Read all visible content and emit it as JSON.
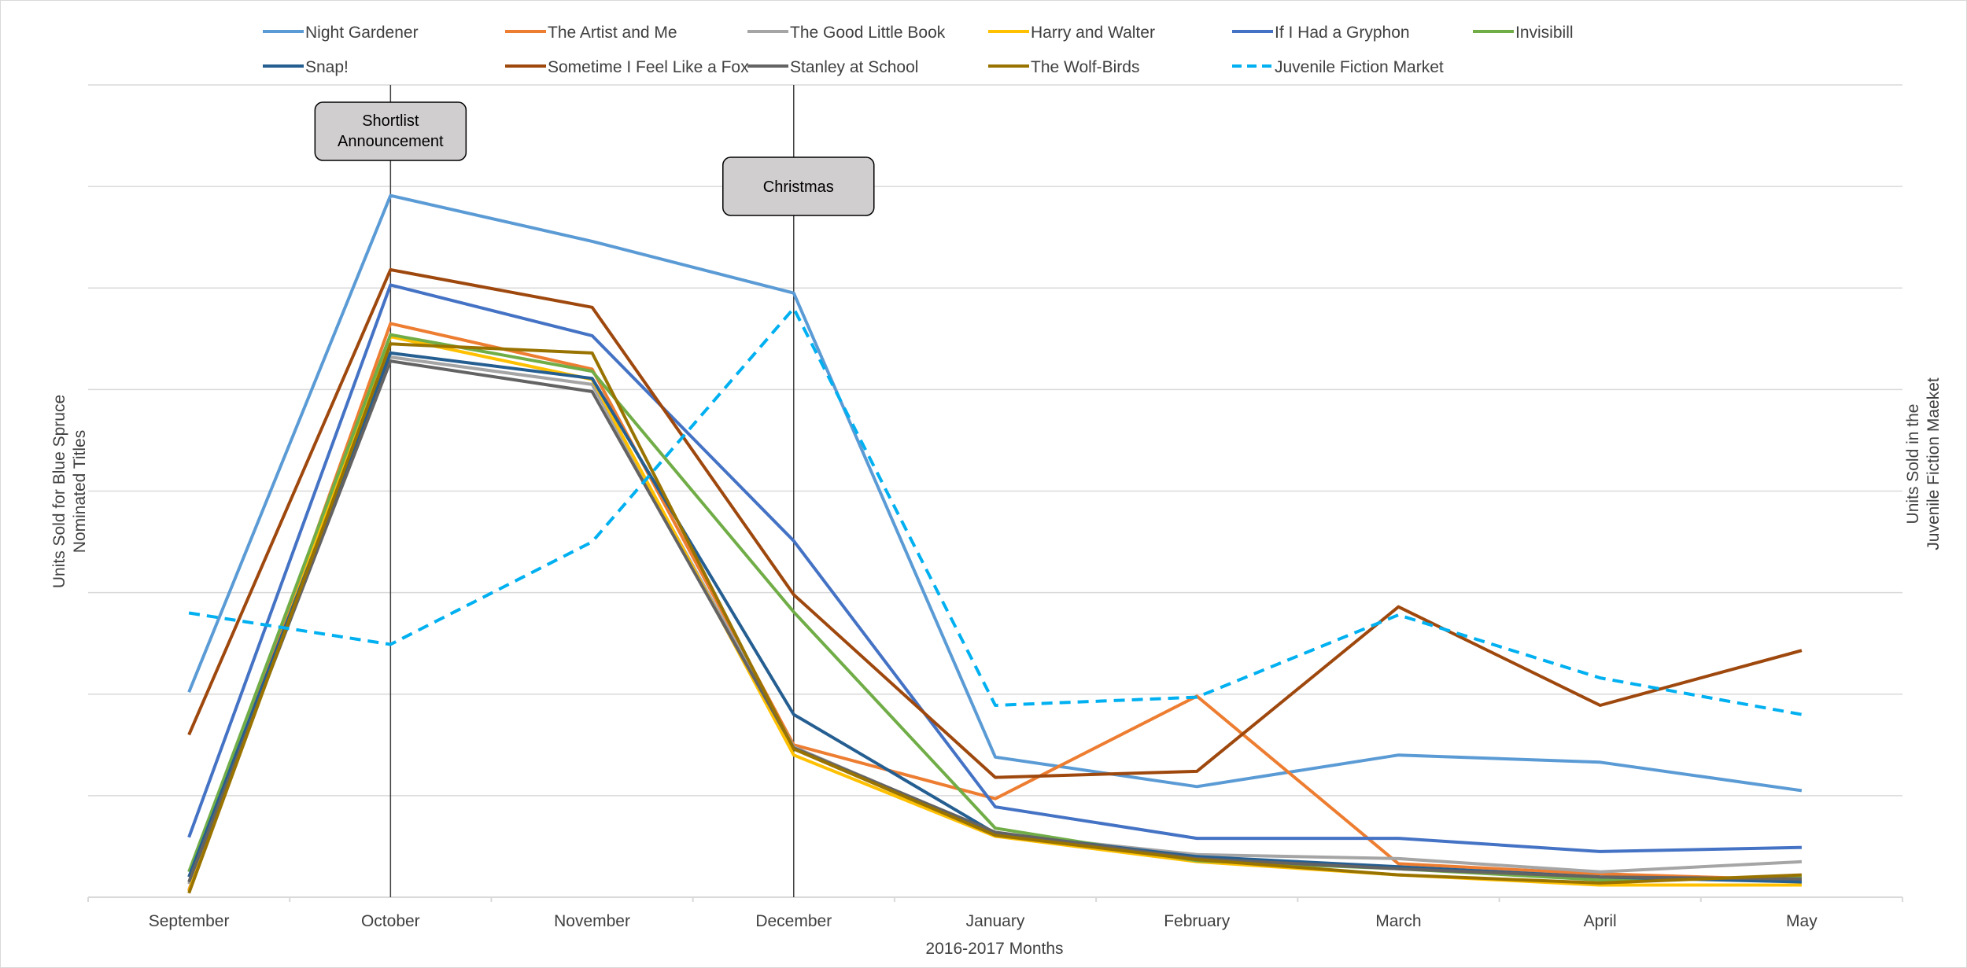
{
  "chart_data": {
    "type": "line",
    "xlabel": "2016-2017  Months",
    "ylabel": "Units Sold for Blue Spruce Nominated Titles",
    "ylabel_right": "Units Sold in the Juvenile Fiction Maeket",
    "ylim": [
      0,
      8
    ],
    "grid": true,
    "legend_position": "top",
    "categories": [
      "September",
      "October",
      "November",
      "December",
      "January",
      "February",
      "March",
      "April",
      "May"
    ],
    "annotations": [
      {
        "label": "Shortlist Announcement",
        "at": "October"
      },
      {
        "label": "Christmas",
        "at": "December"
      }
    ],
    "series": [
      {
        "name": "Night Gardener",
        "color": "#5b9bd5",
        "dash": false,
        "values": [
          2.02,
          6.91,
          6.46,
          5.95,
          1.38,
          1.09,
          1.4,
          1.33,
          1.05
        ]
      },
      {
        "name": "The Artist and Me",
        "color": "#ed7d31",
        "dash": false,
        "values": [
          0.07,
          5.65,
          5.2,
          1.5,
          0.97,
          1.98,
          0.33,
          0.23,
          0.17
        ]
      },
      {
        "name": "The Good Little Book",
        "color": "#a5a5a5",
        "dash": false,
        "values": [
          0.13,
          5.32,
          5.05,
          1.48,
          0.63,
          0.42,
          0.38,
          0.25,
          0.35
        ]
      },
      {
        "name": "Harry and Walter",
        "color": "#ffc000",
        "dash": false,
        "values": [
          0.06,
          5.52,
          5.1,
          1.4,
          0.6,
          0.35,
          0.22,
          0.12,
          0.12
        ]
      },
      {
        "name": "If I Had a Gryphon",
        "color": "#4472c4",
        "dash": false,
        "values": [
          0.59,
          6.03,
          5.53,
          3.51,
          0.89,
          0.58,
          0.58,
          0.45,
          0.49
        ]
      },
      {
        "name": "Invisibill",
        "color": "#70ad47",
        "dash": false,
        "values": [
          0.25,
          5.54,
          5.18,
          2.81,
          0.68,
          0.36,
          0.28,
          0.17,
          0.19
        ]
      },
      {
        "name": "Snap!",
        "color": "#255e91",
        "dash": false,
        "values": [
          0.2,
          5.36,
          5.11,
          1.8,
          0.63,
          0.4,
          0.3,
          0.2,
          0.15
        ]
      },
      {
        "name": "Sometime I Feel Like a Fox",
        "color": "#9e480e",
        "dash": false,
        "values": [
          1.6,
          6.18,
          5.81,
          2.98,
          1.18,
          1.24,
          2.86,
          1.89,
          2.43
        ]
      },
      {
        "name": "Stanley at School",
        "color": "#636363",
        "dash": false,
        "values": [
          0.15,
          5.28,
          4.98,
          1.47,
          0.64,
          0.38,
          0.28,
          0.2,
          0.18
        ]
      },
      {
        "name": "The Wolf-Birds",
        "color": "#997300",
        "dash": false,
        "values": [
          0.04,
          5.45,
          5.36,
          1.46,
          0.61,
          0.37,
          0.22,
          0.14,
          0.22
        ]
      },
      {
        "name": "Juvenile Fiction Market",
        "color": "#00b0f0",
        "dash": true,
        "values": [
          2.8,
          2.49,
          3.5,
          5.8,
          1.89,
          1.97,
          2.78,
          2.16,
          1.8
        ]
      }
    ]
  }
}
